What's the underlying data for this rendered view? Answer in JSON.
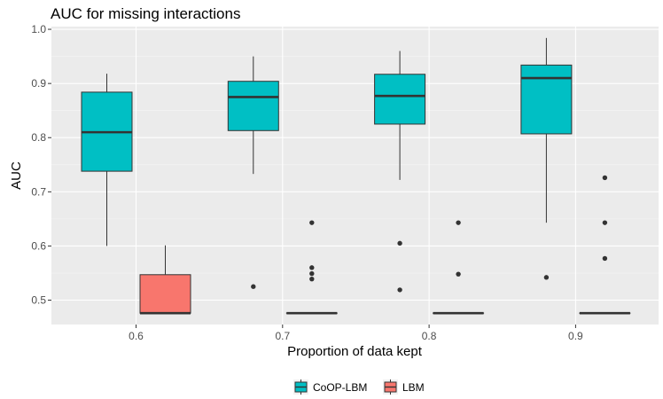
{
  "chart_data": {
    "type": "boxplot",
    "title": "AUC for missing interactions",
    "xlabel": "Proportion of data kept",
    "ylabel": "AUC",
    "categories": [
      "0.6",
      "0.7",
      "0.8",
      "0.9"
    ],
    "ylim": [
      0.455,
      1.005
    ],
    "yticks": [
      "0.5",
      "0.6",
      "0.7",
      "0.8",
      "0.9",
      "1.0"
    ],
    "ytick_values": [
      0.5,
      0.6,
      0.7,
      0.8,
      0.9,
      1.0
    ],
    "grid": true,
    "legend_position": "bottom",
    "series": [
      {
        "name": "CoOP-LBM",
        "color": "#00BFC4",
        "boxes": [
          {
            "category": "0.6",
            "whisker_low": 0.6,
            "q1": 0.738,
            "median": 0.81,
            "q3": 0.884,
            "whisker_high": 0.918,
            "outliers": []
          },
          {
            "category": "0.7",
            "whisker_low": 0.733,
            "q1": 0.813,
            "median": 0.875,
            "q3": 0.904,
            "whisker_high": 0.95,
            "outliers": [
              0.525
            ]
          },
          {
            "category": "0.8",
            "whisker_low": 0.722,
            "q1": 0.825,
            "median": 0.877,
            "q3": 0.917,
            "whisker_high": 0.96,
            "outliers": [
              0.605,
              0.519
            ]
          },
          {
            "category": "0.9",
            "whisker_low": 0.643,
            "q1": 0.807,
            "median": 0.91,
            "q3": 0.934,
            "whisker_high": 0.984,
            "outliers": [
              0.542
            ]
          }
        ]
      },
      {
        "name": "LBM",
        "color": "#F8766D",
        "boxes": [
          {
            "category": "0.6",
            "whisker_low": 0.476,
            "q1": 0.476,
            "median": 0.476,
            "q3": 0.547,
            "whisker_high": 0.601,
            "outliers": []
          },
          {
            "category": "0.7",
            "whisker_low": 0.476,
            "q1": 0.476,
            "median": 0.476,
            "q3": 0.476,
            "whisker_high": 0.476,
            "outliers": [
              0.643,
              0.56,
              0.549,
              0.539
            ]
          },
          {
            "category": "0.8",
            "whisker_low": 0.476,
            "q1": 0.476,
            "median": 0.476,
            "q3": 0.476,
            "whisker_high": 0.476,
            "outliers": [
              0.643,
              0.548
            ]
          },
          {
            "category": "0.9",
            "whisker_low": 0.476,
            "q1": 0.476,
            "median": 0.476,
            "q3": 0.476,
            "whisker_high": 0.476,
            "outliers": [
              0.726,
              0.643,
              0.577
            ]
          }
        ]
      }
    ]
  },
  "colors": {
    "panel_background": "#EBEBEB",
    "major_grid": "#FFFFFF",
    "minor_grid": "#F5F5F5",
    "box_outline": "#333333"
  }
}
